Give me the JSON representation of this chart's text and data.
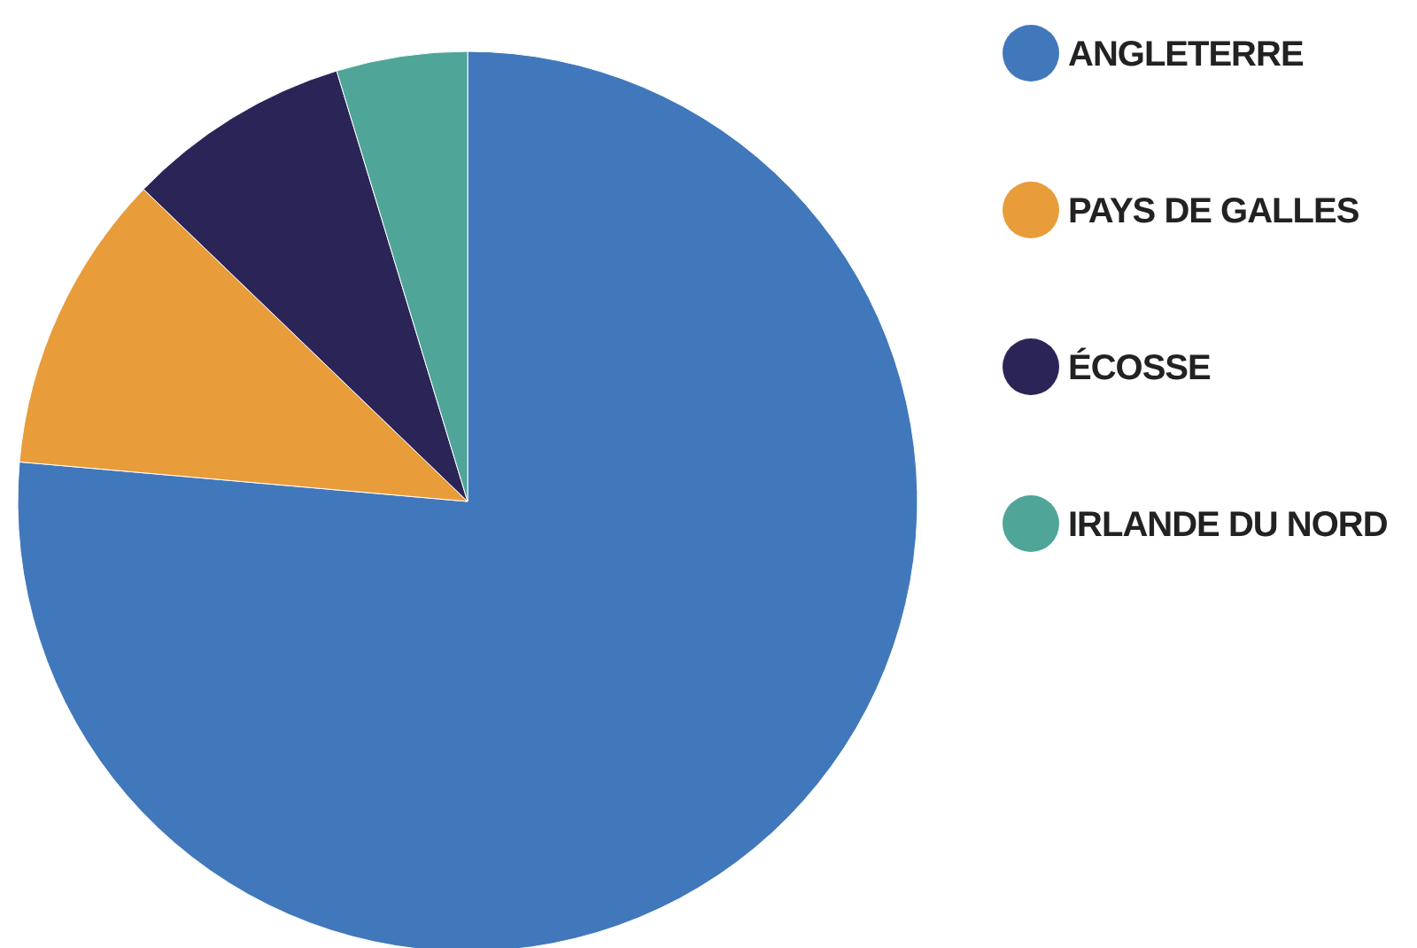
{
  "chart_data": {
    "type": "pie",
    "categories": [
      "ANGLETERRE",
      "PAYS DE GALLES",
      "ÉCOSSE",
      "IRLANDE DU NORD"
    ],
    "values": [
      76.4,
      10.8,
      8.1,
      4.7
    ],
    "colors": [
      "#4178bc",
      "#e89c3a",
      "#2b2557",
      "#4fa597"
    ],
    "legend": "right"
  }
}
